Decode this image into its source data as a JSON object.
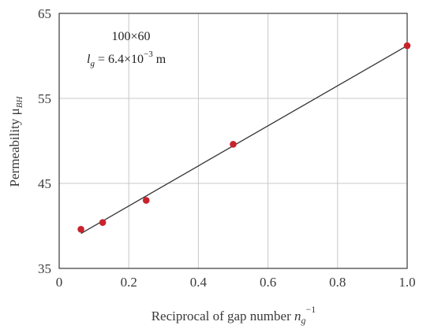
{
  "chart_data": {
    "type": "scatter",
    "title": "",
    "xlabel_main": "Reciprocal of gap number ",
    "xlabel_var": "n",
    "xlabel_sub": "g",
    "xlabel_sup": "−1",
    "ylabel_main": "Permeability  μ",
    "ylabel_sub": "BH",
    "xlim": [
      0,
      1.0
    ],
    "ylim": [
      35,
      65
    ],
    "xticks": [
      "0",
      "0.2",
      "0.4",
      "0.6",
      "0.8",
      "1.0"
    ],
    "xtick_values": [
      0,
      0.2,
      0.4,
      0.6,
      0.8,
      1.0
    ],
    "yticks": [
      "35",
      "45",
      "55",
      "65"
    ],
    "ytick_values": [
      35,
      45,
      55,
      65
    ],
    "grid": true,
    "series": [
      {
        "x": [
          0.0625,
          0.125,
          0.25,
          0.5,
          1.0
        ],
        "y": [
          39.6,
          40.4,
          43.0,
          49.6,
          61.2
        ],
        "color": "#c8232c"
      }
    ],
    "fit_line": {
      "x": [
        0.0625,
        1.0
      ],
      "y": [
        39.1,
        61.2
      ],
      "color": "#333333"
    },
    "annotation": {
      "line1": "100×60",
      "var": "l",
      "sub": "g",
      "rest": " = 6.4×10",
      "sup": "−3",
      "unit": " m"
    }
  }
}
